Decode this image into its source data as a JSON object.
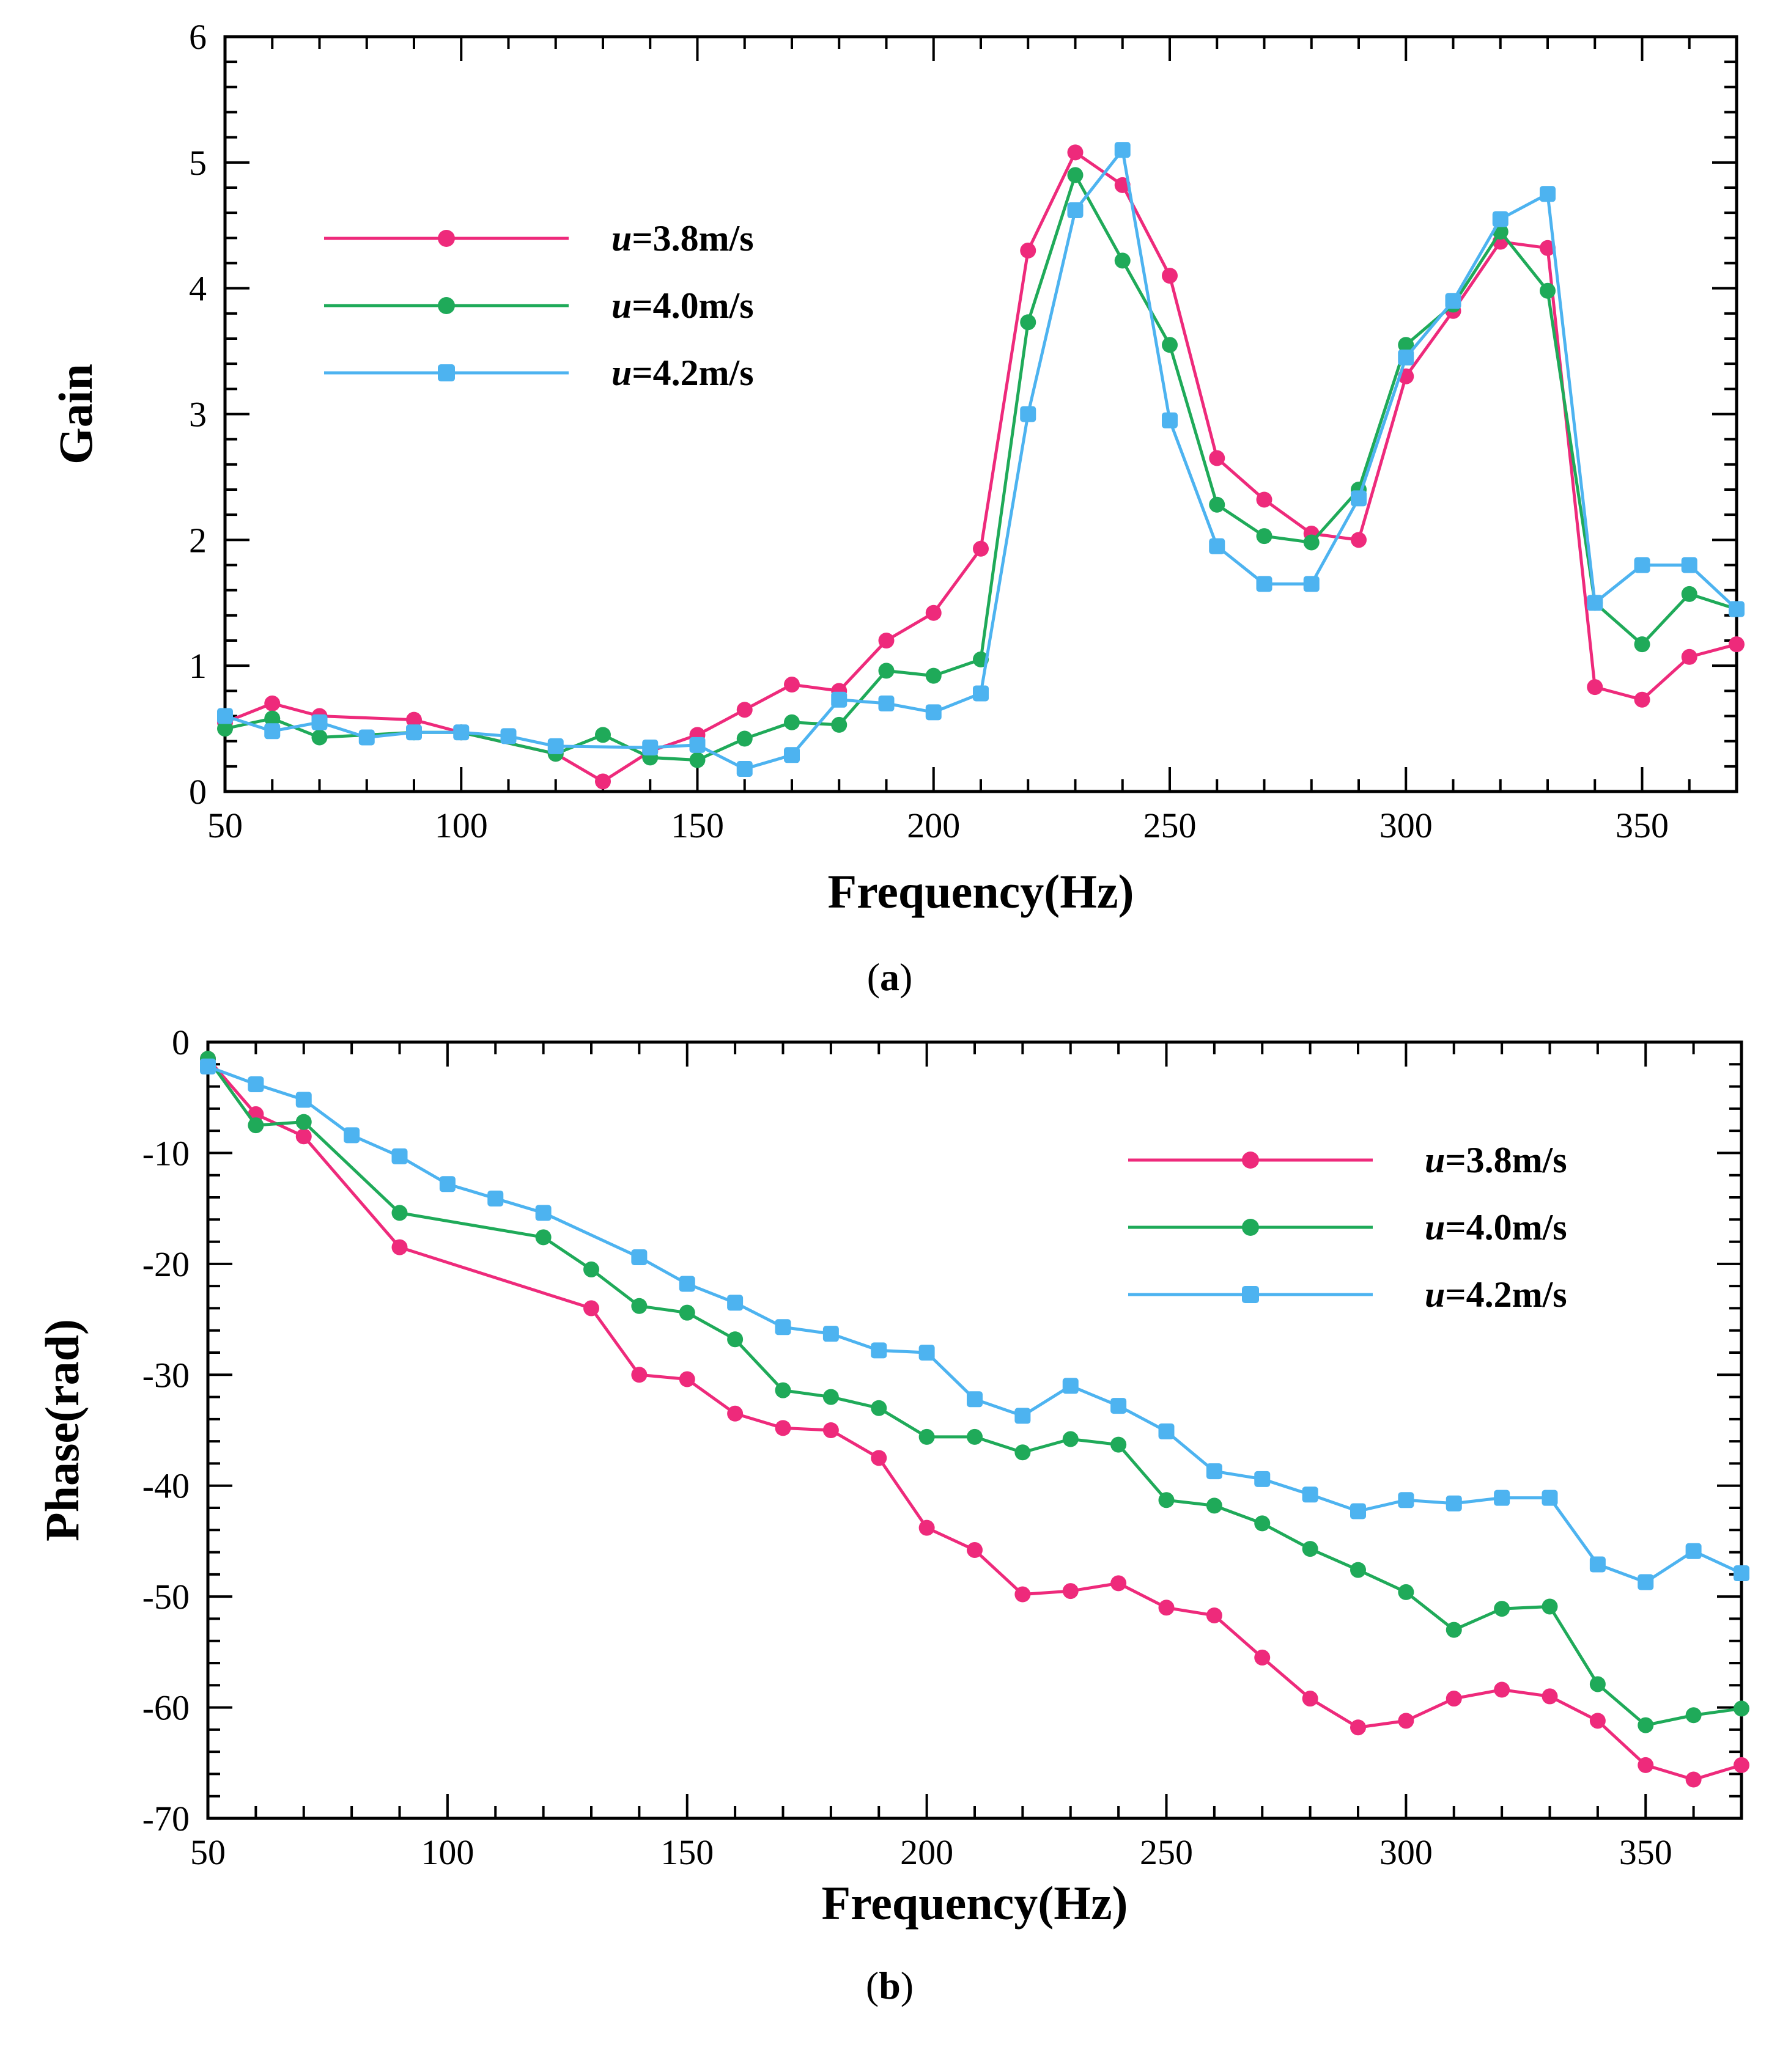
{
  "colors": {
    "s38": "#ee2a7b",
    "s40": "#1faa59",
    "s42": "#4db3f0",
    "axis": "#000000"
  },
  "chart_data": [
    {
      "type": "line",
      "panel": "a",
      "caption_letter": "a",
      "xlabel": "Frequency(Hz)",
      "ylabel": "Gain",
      "xlim": [
        50,
        370
      ],
      "ylim": [
        0,
        6
      ],
      "xticks": [
        50,
        100,
        150,
        200,
        250,
        300,
        350
      ],
      "yticks": [
        0,
        1,
        2,
        3,
        4,
        5,
        6
      ],
      "legend_position": "upper-left",
      "series": [
        {
          "name": "u=3.8m/s",
          "var": "u",
          "rest": "=3.8m/s",
          "color": "#ee2a7b",
          "x": [
            50,
            60,
            70,
            90,
            100,
            120,
            130,
            140,
            150,
            160,
            170,
            180,
            190,
            200,
            210,
            220,
            230,
            240,
            250,
            260,
            270,
            280,
            290,
            300,
            310,
            320,
            330,
            340,
            350,
            360,
            370
          ],
          "y": [
            0.55,
            0.7,
            0.6,
            0.57,
            0.47,
            0.3,
            0.08,
            0.32,
            0.45,
            0.65,
            0.85,
            0.8,
            1.2,
            1.42,
            1.93,
            4.3,
            5.08,
            4.82,
            4.1,
            2.65,
            2.32,
            2.05,
            2.0,
            3.3,
            3.82,
            4.37,
            4.32,
            0.83,
            0.73,
            1.07,
            1.17
          ]
        },
        {
          "name": "u=4.0m/s",
          "var": "u",
          "rest": "=4.0m/s",
          "color": "#1faa59",
          "x": [
            50,
            60,
            70,
            90,
            100,
            120,
            130,
            140,
            150,
            160,
            170,
            180,
            190,
            200,
            210,
            220,
            230,
            240,
            250,
            260,
            270,
            280,
            290,
            300,
            310,
            320,
            330,
            340,
            350,
            360,
            370
          ],
          "y": [
            0.5,
            0.58,
            0.43,
            0.47,
            0.47,
            0.3,
            0.45,
            0.27,
            0.25,
            0.42,
            0.55,
            0.53,
            0.96,
            0.92,
            1.05,
            3.73,
            4.9,
            4.22,
            3.55,
            2.28,
            2.03,
            1.98,
            2.4,
            3.55,
            3.87,
            4.45,
            3.98,
            1.5,
            1.17,
            1.57,
            1.45
          ]
        },
        {
          "name": "u=4.2m/s",
          "var": "u",
          "rest": "=4.2m/s",
          "color": "#4db3f0",
          "x": [
            50,
            60,
            70,
            80,
            90,
            100,
            110,
            120,
            140,
            150,
            160,
            170,
            180,
            190,
            200,
            210,
            220,
            230,
            240,
            250,
            260,
            270,
            280,
            290,
            300,
            310,
            320,
            330,
            340,
            350,
            360,
            370
          ],
          "y": [
            0.6,
            0.48,
            0.55,
            0.43,
            0.47,
            0.47,
            0.44,
            0.36,
            0.35,
            0.37,
            0.18,
            0.29,
            0.73,
            0.7,
            0.63,
            0.78,
            3.0,
            4.62,
            5.1,
            2.95,
            1.95,
            1.65,
            1.65,
            2.33,
            3.45,
            3.9,
            4.55,
            4.75,
            1.5,
            1.8,
            1.8,
            1.45
          ]
        }
      ]
    },
    {
      "type": "line",
      "panel": "b",
      "caption_letter": "b",
      "xlabel": "Frequency(Hz)",
      "ylabel": "Phase(rad)",
      "xlim": [
        50,
        370
      ],
      "ylim": [
        -70,
        0
      ],
      "xticks": [
        50,
        100,
        150,
        200,
        250,
        300,
        350
      ],
      "yticks": [
        0,
        -10,
        -20,
        -30,
        -40,
        -50,
        -60,
        -70
      ],
      "legend_position": "upper-right",
      "series": [
        {
          "name": "u=3.8m/s",
          "var": "u",
          "rest": "=3.8m/s",
          "color": "#ee2a7b",
          "x": [
            50,
            60,
            70,
            90,
            130,
            140,
            150,
            160,
            170,
            180,
            190,
            200,
            210,
            220,
            230,
            240,
            250,
            260,
            270,
            280,
            290,
            300,
            310,
            320,
            330,
            340,
            350,
            360,
            370
          ],
          "y": [
            -1.5,
            -6.5,
            -8.5,
            -18.5,
            -24,
            -30,
            -30.4,
            -33.5,
            -34.8,
            -35,
            -37.5,
            -43.8,
            -45.8,
            -49.8,
            -49.5,
            -48.8,
            -51,
            -51.7,
            -55.5,
            -59.2,
            -61.8,
            -61.2,
            -59.2,
            -58.4,
            -59,
            -61.2,
            -65.2,
            -66.5,
            -65.2
          ]
        },
        {
          "name": "u=4.0m/s",
          "var": "u",
          "rest": "=4.0m/s",
          "color": "#1faa59",
          "x": [
            50,
            60,
            70,
            90,
            120,
            130,
            140,
            150,
            160,
            170,
            180,
            190,
            200,
            210,
            220,
            230,
            240,
            250,
            260,
            270,
            280,
            290,
            300,
            310,
            320,
            330,
            340,
            350,
            360,
            370
          ],
          "y": [
            -1.5,
            -7.5,
            -7.2,
            -15.4,
            -17.6,
            -20.5,
            -23.8,
            -24.4,
            -26.8,
            -31.4,
            -32,
            -33,
            -35.6,
            -35.6,
            -37,
            -35.8,
            -36.3,
            -41.3,
            -41.8,
            -43.4,
            -45.7,
            -47.6,
            -49.6,
            -53,
            -51.1,
            -50.9,
            -57.9,
            -61.6,
            -60.7,
            -60.1
          ]
        },
        {
          "name": "u=4.2m/s",
          "var": "u",
          "rest": "=4.2m/s",
          "color": "#4db3f0",
          "x": [
            50,
            60,
            70,
            80,
            90,
            100,
            110,
            120,
            140,
            150,
            160,
            170,
            180,
            190,
            200,
            210,
            220,
            230,
            240,
            250,
            260,
            270,
            280,
            290,
            300,
            310,
            320,
            330,
            340,
            350,
            360,
            370
          ],
          "y": [
            -2.2,
            -3.8,
            -5.2,
            -8.4,
            -10.3,
            -12.8,
            -14.1,
            -15.4,
            -19.4,
            -21.8,
            -23.5,
            -25.7,
            -26.3,
            -27.8,
            -28,
            -32.2,
            -33.7,
            -31,
            -32.8,
            -35.1,
            -38.7,
            -39.4,
            -40.8,
            -42.3,
            -41.3,
            -41.6,
            -41.1,
            -41.1,
            -47.1,
            -48.7,
            -45.9,
            -47.9
          ]
        }
      ]
    }
  ]
}
